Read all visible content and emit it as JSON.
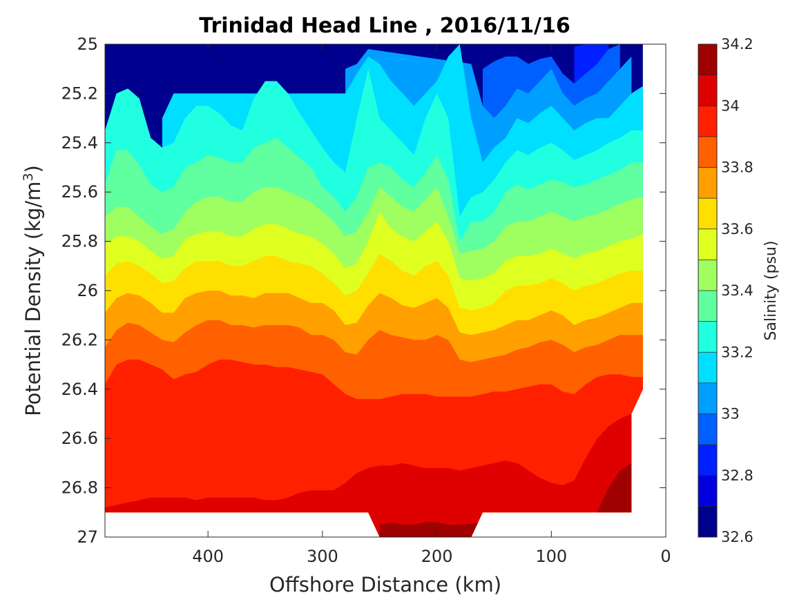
{
  "chart_data": {
    "type": "heatmap",
    "subtype": "filled-contour",
    "title": "Trinidad Head Line , 2016/11/16",
    "xlabel": "Offshore Distance (km)",
    "ylabel": "Potential Density (kg/m3)",
    "ylabel_parts": {
      "base": "Potential Density (kg/m",
      "sup": "3",
      "tail": ")"
    },
    "xlim": [
      490,
      0
    ],
    "ylim": [
      25,
      27
    ],
    "x_reversed": true,
    "y_reversed": true,
    "xticks": [
      400,
      300,
      200,
      100,
      0
    ],
    "yticks": [
      25,
      25.2,
      25.4,
      25.6,
      25.8,
      26,
      26.2,
      26.4,
      26.6,
      26.8,
      27
    ],
    "ytick_labels": [
      "25",
      "25.2",
      "25.4",
      "25.6",
      "25.8",
      "26",
      "26.2",
      "26.4",
      "26.6",
      "26.8",
      "27"
    ],
    "xtick_labels": [
      "400",
      "300",
      "200",
      "100",
      "0"
    ],
    "grid": false,
    "colorbar": {
      "label": "Salinity (psu)",
      "range": [
        32.6,
        34.2
      ],
      "levels": [
        32.6,
        32.7,
        32.8,
        32.9,
        33.0,
        33.1,
        33.2,
        33.3,
        33.4,
        33.5,
        33.6,
        33.7,
        33.8,
        33.9,
        34.0,
        34.1,
        34.2
      ],
      "tick_values": [
        32.6,
        32.8,
        33.0,
        33.2,
        33.4,
        33.6,
        33.8,
        34.0,
        34.2
      ],
      "tick_labels": [
        "32.6",
        "32.8",
        "33",
        "33.2",
        "33.4",
        "33.6",
        "33.8",
        "34",
        "34.2"
      ],
      "colors": [
        "#00008f",
        "#0000df",
        "#0020ff",
        "#0060ff",
        "#009fff",
        "#00dfff",
        "#20ffdf",
        "#60ff9f",
        "#9fff60",
        "#dfff20",
        "#ffdf00",
        "#ff9f00",
        "#ff6000",
        "#ff2000",
        "#df0000",
        "#9f0000"
      ]
    },
    "x": [
      490,
      480,
      470,
      460,
      450,
      440,
      430,
      420,
      410,
      400,
      390,
      380,
      370,
      360,
      350,
      340,
      330,
      320,
      310,
      300,
      290,
      280,
      270,
      260,
      250,
      240,
      230,
      220,
      210,
      200,
      190,
      180,
      170,
      160,
      150,
      140,
      130,
      120,
      110,
      100,
      90,
      80,
      70,
      60,
      50,
      40,
      30,
      20
    ],
    "data_extent": {
      "x_min": 20,
      "bottom_by_x": [
        [
          490,
          26.9
        ],
        [
          260,
          26.9
        ],
        [
          250,
          27.0
        ],
        [
          170,
          27.0
        ],
        [
          160,
          26.9
        ],
        [
          30,
          26.9
        ],
        [
          30,
          26.5
        ],
        [
          20,
          26.4
        ]
      ]
    },
    "isopycnal_depth_of_salinity_levels": [
      {
        "level": 32.8,
        "y": [
          null,
          null,
          null,
          null,
          null,
          null,
          null,
          null,
          null,
          null,
          null,
          null,
          null,
          null,
          null,
          null,
          null,
          null,
          null,
          null,
          null,
          null,
          null,
          null,
          null,
          null,
          null,
          null,
          null,
          null,
          null,
          null,
          null,
          null,
          null,
          null,
          null,
          null,
          null,
          null,
          null,
          25.01,
          25.0,
          25.0,
          25.0,
          null,
          null,
          null
        ]
      },
      {
        "level": 32.9,
        "y": [
          null,
          null,
          null,
          null,
          null,
          null,
          null,
          null,
          null,
          null,
          null,
          null,
          null,
          null,
          null,
          null,
          null,
          null,
          null,
          null,
          null,
          null,
          null,
          null,
          null,
          null,
          null,
          null,
          null,
          null,
          null,
          null,
          null,
          25.1,
          25.07,
          25.05,
          25.05,
          25.08,
          25.06,
          25.05,
          25.12,
          25.16,
          25.12,
          25.08,
          25.02,
          25.0,
          null,
          null
        ]
      },
      {
        "level": 33.0,
        "y": [
          null,
          null,
          null,
          null,
          null,
          null,
          null,
          null,
          null,
          null,
          null,
          null,
          null,
          null,
          null,
          null,
          null,
          null,
          null,
          null,
          null,
          25.1,
          25.08,
          25.02,
          null,
          null,
          null,
          null,
          null,
          null,
          null,
          null,
          25.08,
          25.25,
          25.3,
          25.25,
          25.18,
          25.2,
          25.15,
          25.1,
          25.2,
          25.25,
          25.22,
          25.2,
          25.15,
          25.1,
          25.05,
          null
        ]
      },
      {
        "level": 33.1,
        "y": [
          null,
          null,
          null,
          null,
          null,
          25.3,
          25.2,
          null,
          null,
          null,
          null,
          null,
          null,
          null,
          null,
          null,
          null,
          null,
          null,
          null,
          null,
          25.2,
          25.12,
          25.05,
          25.08,
          25.15,
          25.2,
          25.25,
          25.2,
          25.15,
          25.05,
          25.0,
          25.3,
          25.48,
          25.42,
          25.38,
          25.3,
          25.32,
          25.28,
          25.25,
          25.3,
          25.35,
          25.32,
          25.3,
          25.3,
          25.25,
          25.2,
          25.17
        ]
      },
      {
        "level": 33.2,
        "y": [
          25.35,
          25.2,
          25.18,
          25.22,
          25.38,
          25.42,
          25.4,
          25.3,
          25.25,
          25.25,
          25.28,
          25.33,
          25.35,
          25.22,
          25.15,
          25.15,
          25.2,
          25.28,
          25.35,
          25.42,
          25.48,
          25.52,
          25.3,
          25.1,
          25.3,
          25.35,
          25.4,
          25.45,
          25.3,
          25.2,
          25.3,
          25.7,
          25.62,
          25.6,
          25.55,
          25.48,
          25.43,
          25.45,
          25.42,
          25.4,
          25.43,
          25.47,
          25.45,
          25.43,
          25.4,
          25.38,
          25.35,
          25.35
        ]
      },
      {
        "level": 33.3,
        "y": [
          25.57,
          25.43,
          25.43,
          25.49,
          25.57,
          25.6,
          25.58,
          25.5,
          25.48,
          25.45,
          25.46,
          25.48,
          25.48,
          25.42,
          25.4,
          25.38,
          25.42,
          25.46,
          25.5,
          25.58,
          25.62,
          25.68,
          25.62,
          25.5,
          25.48,
          25.5,
          25.55,
          25.58,
          25.52,
          25.45,
          25.55,
          25.8,
          25.72,
          25.72,
          25.68,
          25.6,
          25.57,
          25.59,
          25.57,
          25.55,
          25.56,
          25.58,
          25.57,
          25.55,
          25.53,
          25.51,
          25.48,
          25.48
        ]
      },
      {
        "level": 33.4,
        "y": [
          25.7,
          25.66,
          25.66,
          25.7,
          25.74,
          25.77,
          25.75,
          25.68,
          25.64,
          25.62,
          25.62,
          25.64,
          25.64,
          25.6,
          25.58,
          25.58,
          25.6,
          25.62,
          25.64,
          25.68,
          25.72,
          25.78,
          25.76,
          25.68,
          25.58,
          25.62,
          25.66,
          25.68,
          25.63,
          25.58,
          25.7,
          25.85,
          25.84,
          25.83,
          25.8,
          25.74,
          25.72,
          25.72,
          25.7,
          25.68,
          25.7,
          25.72,
          25.7,
          25.69,
          25.67,
          25.65,
          25.63,
          25.62
        ]
      },
      {
        "level": 33.5,
        "y": [
          25.81,
          25.78,
          25.78,
          25.8,
          25.84,
          25.87,
          25.86,
          25.79,
          25.77,
          25.76,
          25.76,
          25.78,
          25.78,
          25.75,
          25.73,
          25.73,
          25.75,
          25.77,
          25.78,
          25.81,
          25.85,
          25.91,
          25.89,
          25.8,
          25.68,
          25.75,
          25.78,
          25.8,
          25.76,
          25.72,
          25.8,
          25.95,
          25.96,
          25.95,
          25.93,
          25.88,
          25.86,
          25.86,
          25.85,
          25.83,
          25.85,
          25.87,
          25.85,
          25.84,
          25.82,
          25.8,
          25.79,
          25.77
        ]
      },
      {
        "level": 33.6,
        "y": [
          25.94,
          25.89,
          25.88,
          25.9,
          25.93,
          25.97,
          25.96,
          25.91,
          25.88,
          25.88,
          25.88,
          25.9,
          25.9,
          25.88,
          25.86,
          25.86,
          25.88,
          25.89,
          25.9,
          25.93,
          25.97,
          26.02,
          26.0,
          25.93,
          25.85,
          25.88,
          25.92,
          25.94,
          25.9,
          25.88,
          25.94,
          26.07,
          26.08,
          26.07,
          26.05,
          26.0,
          25.98,
          25.98,
          25.97,
          25.95,
          25.97,
          26.0,
          25.98,
          25.97,
          25.95,
          25.93,
          25.92,
          25.92
        ]
      },
      {
        "level": 33.7,
        "y": [
          26.09,
          26.03,
          26.01,
          26.02,
          26.05,
          26.09,
          26.09,
          26.03,
          26.01,
          26.0,
          26.0,
          26.02,
          26.02,
          26.03,
          26.01,
          26.01,
          26.01,
          26.03,
          26.05,
          26.05,
          26.08,
          26.14,
          26.13,
          26.06,
          26.01,
          26.03,
          26.06,
          26.07,
          26.05,
          26.03,
          26.07,
          26.17,
          26.18,
          26.17,
          26.16,
          26.14,
          26.12,
          26.12,
          26.1,
          26.08,
          26.1,
          26.14,
          26.12,
          26.11,
          26.09,
          26.07,
          26.05,
          26.05
        ]
      },
      {
        "level": 33.8,
        "y": [
          26.23,
          26.16,
          26.13,
          26.14,
          26.17,
          26.2,
          26.21,
          26.17,
          26.14,
          26.12,
          26.12,
          26.14,
          26.14,
          26.15,
          26.14,
          26.14,
          26.14,
          26.15,
          26.18,
          26.18,
          26.2,
          26.25,
          26.26,
          26.2,
          26.16,
          26.18,
          26.19,
          26.2,
          26.2,
          26.18,
          26.2,
          26.28,
          26.29,
          26.28,
          26.27,
          26.26,
          26.24,
          26.23,
          26.21,
          26.2,
          26.22,
          26.25,
          26.23,
          26.22,
          26.2,
          26.18,
          26.18,
          26.18
        ]
      },
      {
        "level": 33.9,
        "y": [
          26.38,
          26.3,
          26.28,
          26.28,
          26.3,
          26.32,
          26.36,
          26.34,
          26.33,
          26.3,
          26.28,
          26.28,
          26.29,
          26.3,
          26.3,
          26.31,
          26.31,
          26.32,
          26.33,
          26.34,
          26.38,
          26.42,
          26.44,
          26.44,
          26.44,
          26.43,
          26.42,
          26.42,
          26.42,
          26.43,
          26.43,
          26.43,
          26.43,
          26.42,
          26.41,
          26.41,
          26.4,
          26.39,
          26.38,
          26.38,
          26.41,
          26.42,
          26.38,
          26.35,
          26.34,
          26.34,
          26.35,
          26.35
        ]
      },
      {
        "level": 34.0,
        "y": [
          26.88,
          26.87,
          26.86,
          26.85,
          26.84,
          26.84,
          26.84,
          26.84,
          26.85,
          26.84,
          26.84,
          26.84,
          26.84,
          26.84,
          26.85,
          26.85,
          26.84,
          26.82,
          26.81,
          26.81,
          26.81,
          26.78,
          26.74,
          26.72,
          26.71,
          26.71,
          26.7,
          26.71,
          26.72,
          26.72,
          26.72,
          26.73,
          26.72,
          26.71,
          26.7,
          26.69,
          26.7,
          26.73,
          26.76,
          26.78,
          26.79,
          26.77,
          26.68,
          26.6,
          26.55,
          26.52,
          26.5,
          null
        ]
      },
      {
        "level": 34.1,
        "y": [
          null,
          null,
          null,
          null,
          null,
          null,
          null,
          null,
          null,
          null,
          null,
          null,
          null,
          null,
          null,
          null,
          null,
          null,
          null,
          null,
          null,
          null,
          null,
          null,
          26.95,
          26.94,
          26.95,
          26.95,
          26.94,
          26.94,
          26.95,
          26.95,
          null,
          null,
          null,
          null,
          null,
          null,
          null,
          null,
          null,
          null,
          null,
          26.9,
          26.8,
          26.73,
          26.7,
          null
        ]
      }
    ]
  }
}
